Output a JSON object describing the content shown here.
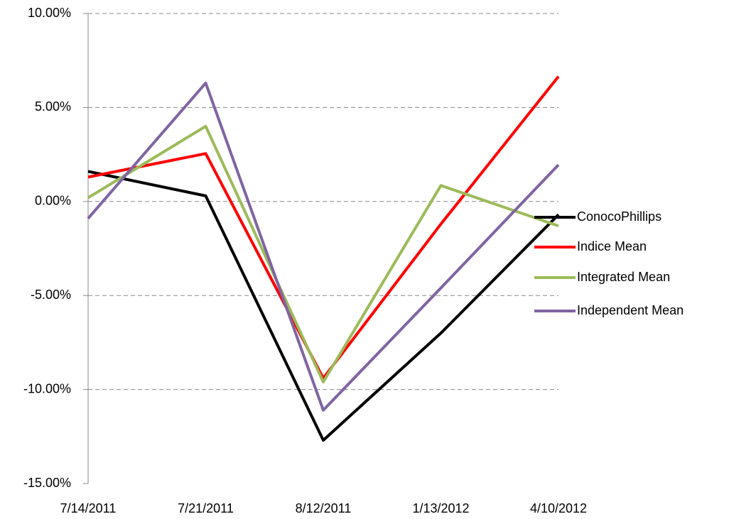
{
  "chart_data": {
    "type": "line",
    "categories": [
      "7/14/2011",
      "7/21/2011",
      "8/12/2011",
      "1/13/2012",
      "4/10/2012"
    ],
    "series": [
      {
        "name": "ConocoPhillips",
        "color": "#000000",
        "values": [
          1.6,
          0.3,
          -12.7,
          -7.0,
          -0.7
        ]
      },
      {
        "name": "Indice Mean",
        "color": "#ff0000",
        "values": [
          1.3,
          2.55,
          -9.4,
          -1.2,
          6.65
        ]
      },
      {
        "name": "Integrated Mean",
        "color": "#9bbb59",
        "values": [
          0.2,
          4.0,
          -9.6,
          0.85,
          -1.3
        ]
      },
      {
        "name": "Independent Mean",
        "color": "#8064a2",
        "values": [
          -0.9,
          6.3,
          -11.1,
          -4.6,
          1.95
        ]
      }
    ],
    "ylim": [
      -15,
      10
    ],
    "yticks": [
      {
        "value": -15,
        "label": "-15.00%"
      },
      {
        "value": -10,
        "label": "-10.00%"
      },
      {
        "value": -5,
        "label": "-5.00%"
      },
      {
        "value": 0,
        "label": "0.00%"
      },
      {
        "value": 5,
        "label": "5.00%"
      },
      {
        "value": 10,
        "label": "10.00%"
      }
    ],
    "grid": true,
    "legend": "right"
  }
}
